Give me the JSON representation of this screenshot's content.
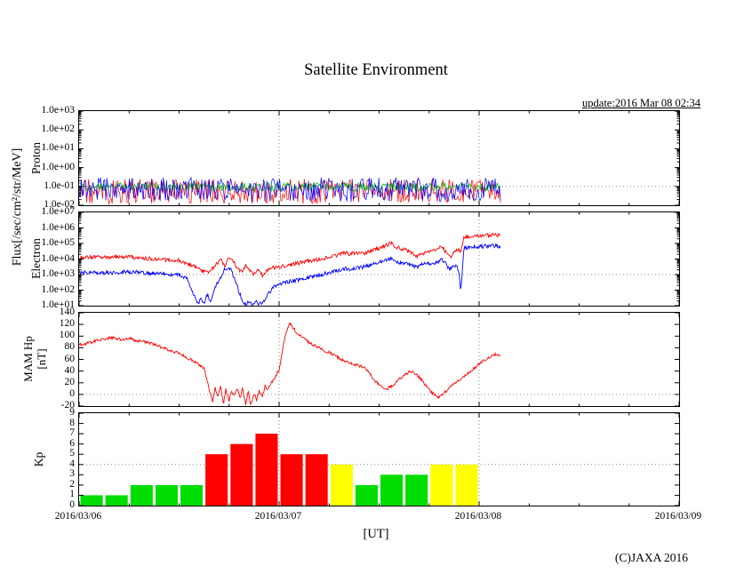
{
  "title": "Satellite Environment",
  "update_text": "update:2016 Mar 08 02:34",
  "copyright": "(C)JAXA 2016",
  "xaxis": {
    "label": "[UT]",
    "range_hours": [
      0,
      72
    ],
    "ticks": [
      {
        "hour": 0,
        "label": "2016/03/06"
      },
      {
        "hour": 24,
        "label": "2016/03/07"
      },
      {
        "hour": 48,
        "label": "2016/03/08"
      },
      {
        "hour": 72,
        "label": "2016/03/09"
      }
    ]
  },
  "ylabels": {
    "flux": "Flux[/sec/cm²/str/MeV]",
    "proton": "Proton",
    "electron": "Electron",
    "hp_line1": "MAM Hp",
    "hp_line2": "[nT]",
    "kp": "Kp"
  },
  "chart_data": [
    {
      "panel": "proton",
      "type": "line",
      "title": "Proton flux",
      "yscale": "log",
      "ylim": [
        0.01,
        1000
      ],
      "ytick_values": [
        1000,
        100,
        10,
        1,
        0.1,
        0.01
      ],
      "ytick_labels": [
        "1.0e+03",
        "1.0e+02",
        "1.0e+01",
        "1.0e+00",
        "1.0e-01",
        "1.0e-02"
      ],
      "threshold_line": 0.1,
      "data_end_hour": 50.6,
      "series": [
        {
          "name": "proton-red",
          "color": "#ff0000",
          "band": [
            0.012,
            0.25
          ],
          "width": 0.7
        },
        {
          "name": "proton-green",
          "color": "#00bb00",
          "band": [
            0.055,
            0.16
          ],
          "width": 0.8
        },
        {
          "name": "proton-blue",
          "color": "#0000ff",
          "band": [
            0.015,
            0.3
          ],
          "width": 0.7
        }
      ]
    },
    {
      "panel": "electron",
      "type": "line",
      "title": "Electron flux",
      "yscale": "log",
      "ylim": [
        10,
        10000000
      ],
      "ytick_values": [
        10000000,
        1000000,
        100000,
        10000,
        1000,
        100,
        10
      ],
      "ytick_labels": [
        "1.0e+07",
        "1.0e+06",
        "1.0e+05",
        "1.0e+04",
        "1.0e+03",
        "1.0e+02",
        "1.0e+01"
      ],
      "threshold_line": 1000,
      "data_end_hour": 50.6,
      "series": [
        {
          "name": "electron-red",
          "color": "#ff0000",
          "jitter": 0.25,
          "width": 0.9,
          "points": [
            [
              0,
              12000
            ],
            [
              1,
              13000
            ],
            [
              2,
              14000
            ],
            [
              3,
              12000
            ],
            [
              4,
              13000
            ],
            [
              5,
              15000
            ],
            [
              6,
              14000
            ],
            [
              7,
              12000
            ],
            [
              8,
              11000
            ],
            [
              9,
              10000
            ],
            [
              10,
              9000
            ],
            [
              11,
              8500
            ],
            [
              12,
              8000
            ],
            [
              13,
              5000
            ],
            [
              14,
              3000
            ],
            [
              15,
              1500
            ],
            [
              15.5,
              1200
            ],
            [
              16,
              2500
            ],
            [
              16.5,
              5000
            ],
            [
              17,
              9000
            ],
            [
              17.5,
              3000
            ],
            [
              18,
              15000
            ],
            [
              18.5,
              7000
            ],
            [
              19,
              2500
            ],
            [
              19.5,
              1500
            ],
            [
              20,
              4000
            ],
            [
              20.5,
              2000
            ],
            [
              21,
              1000
            ],
            [
              21.5,
              2500
            ],
            [
              22,
              900
            ],
            [
              22.5,
              1600
            ],
            [
              23,
              2600
            ],
            [
              24,
              3200
            ],
            [
              25,
              4000
            ],
            [
              26,
              5000
            ],
            [
              27,
              6500
            ],
            [
              28,
              8000
            ],
            [
              29,
              10000
            ],
            [
              30,
              14000
            ],
            [
              31,
              18000
            ],
            [
              32,
              26000
            ],
            [
              32.5,
              20000
            ],
            [
              33,
              24000
            ],
            [
              34,
              22000
            ],
            [
              35,
              32000
            ],
            [
              36,
              50000
            ],
            [
              37,
              80000
            ],
            [
              37.5,
              120000
            ],
            [
              38,
              60000
            ],
            [
              39,
              40000
            ],
            [
              40,
              25000
            ],
            [
              40.5,
              15000
            ],
            [
              41,
              22000
            ],
            [
              42,
              30000
            ],
            [
              43,
              42000
            ],
            [
              43.5,
              70000
            ],
            [
              44,
              30000
            ],
            [
              44.5,
              12000
            ],
            [
              45,
              25000
            ],
            [
              45.5,
              40000
            ],
            [
              45.8,
              30000
            ],
            [
              46.2,
              250000
            ],
            [
              47,
              300000
            ],
            [
              48,
              320000
            ],
            [
              49,
              340000
            ],
            [
              50,
              350000
            ],
            [
              50.6,
              330000
            ]
          ]
        },
        {
          "name": "electron-blue",
          "color": "#0000ff",
          "jitter": 0.25,
          "width": 0.9,
          "points": [
            [
              0,
              1300
            ],
            [
              2,
              1400
            ],
            [
              4,
              1300
            ],
            [
              6,
              1500
            ],
            [
              8,
              1300
            ],
            [
              10,
              1100
            ],
            [
              12,
              950
            ],
            [
              13,
              500
            ],
            [
              13.5,
              120
            ],
            [
              14,
              25
            ],
            [
              14.3,
              12
            ],
            [
              14.6,
              30
            ],
            [
              15,
              12
            ],
            [
              15.4,
              60
            ],
            [
              15.8,
              15
            ],
            [
              16.2,
              90
            ],
            [
              16.6,
              300
            ],
            [
              17,
              700
            ],
            [
              17.4,
              2000
            ],
            [
              18,
              3200
            ],
            [
              18.4,
              1200
            ],
            [
              18.8,
              350
            ],
            [
              19.2,
              80
            ],
            [
              19.6,
              20
            ],
            [
              20,
              12
            ],
            [
              20.4,
              16
            ],
            [
              20.8,
              11
            ],
            [
              21.2,
              18
            ],
            [
              21.6,
              12
            ],
            [
              22,
              14
            ],
            [
              22.4,
              30
            ],
            [
              22.8,
              70
            ],
            [
              23.2,
              130
            ],
            [
              23.6,
              200
            ],
            [
              24,
              260
            ],
            [
              25,
              320
            ],
            [
              26,
              420
            ],
            [
              27,
              550
            ],
            [
              28,
              800
            ],
            [
              29,
              1000
            ],
            [
              30,
              1300
            ],
            [
              31,
              1800
            ],
            [
              32,
              2600
            ],
            [
              32.5,
              2100
            ],
            [
              33,
              2500
            ],
            [
              34,
              3000
            ],
            [
              35,
              4200
            ],
            [
              36,
              6000
            ],
            [
              37,
              9000
            ],
            [
              37.5,
              12000
            ],
            [
              38,
              7000
            ],
            [
              39,
              5200
            ],
            [
              40,
              4000
            ],
            [
              40.5,
              3000
            ],
            [
              41,
              4200
            ],
            [
              42,
              5200
            ],
            [
              43,
              6500
            ],
            [
              43.5,
              9500
            ],
            [
              44,
              5000
            ],
            [
              44.5,
              2200
            ],
            [
              45,
              4000
            ],
            [
              45.5,
              2500
            ],
            [
              45.8,
              100
            ],
            [
              46.2,
              50000
            ],
            [
              47,
              58000
            ],
            [
              48,
              62000
            ],
            [
              49,
              68000
            ],
            [
              50,
              70000
            ],
            [
              50.6,
              68000
            ]
          ]
        }
      ]
    },
    {
      "panel": "hp",
      "type": "line",
      "title": "MAM Hp [nT]",
      "yscale": "linear",
      "ylim": [
        -20,
        140
      ],
      "ytick_values": [
        140,
        120,
        100,
        80,
        60,
        40,
        20,
        0,
        -20
      ],
      "ytick_labels": [
        "140",
        "120",
        "100",
        "80",
        "60",
        "40",
        "20",
        "0",
        "-20"
      ],
      "threshold_line": 0,
      "data_end_hour": 50.6,
      "series": [
        {
          "name": "hp-red",
          "color": "#ff0000",
          "jitter": 5,
          "width": 0.9,
          "points": [
            [
              0,
              85
            ],
            [
              1,
              88
            ],
            [
              2,
              92
            ],
            [
              3,
              95
            ],
            [
              4,
              97
            ],
            [
              5,
              94
            ],
            [
              6,
              96
            ],
            [
              7,
              92
            ],
            [
              8,
              90
            ],
            [
              9,
              86
            ],
            [
              10,
              80
            ],
            [
              11,
              75
            ],
            [
              12,
              70
            ],
            [
              13,
              63
            ],
            [
              14,
              55
            ],
            [
              15,
              45
            ],
            [
              15.4,
              20
            ],
            [
              15.7,
              5
            ],
            [
              16,
              -12
            ],
            [
              16.3,
              12
            ],
            [
              16.6,
              -5
            ],
            [
              17,
              15
            ],
            [
              17.3,
              -18
            ],
            [
              17.6,
              8
            ],
            [
              18,
              -10
            ],
            [
              18.3,
              6
            ],
            [
              18.6,
              -2
            ],
            [
              19,
              12
            ],
            [
              19.3,
              -8
            ],
            [
              19.6,
              10
            ],
            [
              20,
              -16
            ],
            [
              20.3,
              4
            ],
            [
              20.6,
              -18
            ],
            [
              21,
              2
            ],
            [
              21.3,
              -10
            ],
            [
              21.6,
              6
            ],
            [
              22,
              -4
            ],
            [
              22.3,
              14
            ],
            [
              22.6,
              8
            ],
            [
              23,
              20
            ],
            [
              23.5,
              28
            ],
            [
              24,
              42
            ],
            [
              24.3,
              65
            ],
            [
              24.6,
              92
            ],
            [
              25,
              112
            ],
            [
              25.3,
              123
            ],
            [
              25.6,
              116
            ],
            [
              26,
              108
            ],
            [
              26.5,
              101
            ],
            [
              27,
              96
            ],
            [
              27.5,
              90
            ],
            [
              28,
              86
            ],
            [
              28.5,
              82
            ],
            [
              29,
              78
            ],
            [
              30,
              72
            ],
            [
              31,
              64
            ],
            [
              32,
              56
            ],
            [
              33,
              51
            ],
            [
              34,
              48
            ],
            [
              34.5,
              42
            ],
            [
              35,
              33
            ],
            [
              35.5,
              24
            ],
            [
              36,
              17
            ],
            [
              36.5,
              12
            ],
            [
              37,
              10
            ],
            [
              37.5,
              14
            ],
            [
              38,
              20
            ],
            [
              38.5,
              27
            ],
            [
              39,
              33
            ],
            [
              39.5,
              37
            ],
            [
              40,
              40
            ],
            [
              40.5,
              34
            ],
            [
              41,
              27
            ],
            [
              41.5,
              17
            ],
            [
              42,
              8
            ],
            [
              42.5,
              1
            ],
            [
              43,
              -5
            ],
            [
              43.5,
              -2
            ],
            [
              44,
              5
            ],
            [
              44.5,
              12
            ],
            [
              45,
              18
            ],
            [
              45.5,
              24
            ],
            [
              46,
              30
            ],
            [
              46.5,
              35
            ],
            [
              47,
              40
            ],
            [
              47.5,
              46
            ],
            [
              48,
              52
            ],
            [
              48.5,
              58
            ],
            [
              49,
              62
            ],
            [
              49.5,
              66
            ],
            [
              50,
              69
            ],
            [
              50.6,
              67
            ]
          ]
        }
      ]
    },
    {
      "panel": "kp",
      "type": "bar",
      "title": "Kp index",
      "yscale": "linear",
      "ylim": [
        0,
        9
      ],
      "ytick_values": [
        9,
        8,
        7,
        6,
        5,
        4,
        3,
        2,
        1,
        0
      ],
      "ytick_labels": [
        "9",
        "8",
        "7",
        "6",
        "5",
        "4",
        "3",
        "2",
        "1",
        "0"
      ],
      "threshold_line": 4,
      "bar_hours": 3,
      "values": [
        1,
        1,
        2,
        2,
        2,
        5,
        6,
        7,
        5,
        5,
        4,
        2,
        3,
        3,
        4,
        4
      ],
      "colors": {
        "low": "#00dd00",
        "mid": "#ffff00",
        "high": "#ff0000"
      },
      "color_thresholds": {
        "red_min": 5,
        "yellow_min": 4
      }
    }
  ]
}
